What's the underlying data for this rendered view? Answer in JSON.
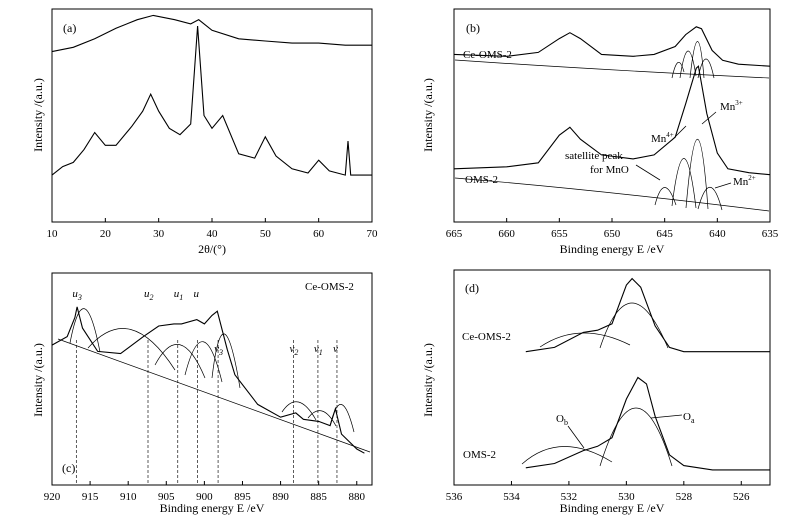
{
  "chart_data": [
    {
      "panel": "(a)",
      "type": "line",
      "xlabel": "2θ/(°)",
      "ylabel": "Intensity /(a.u.)",
      "xlim": [
        10,
        70
      ],
      "xticks": [
        10,
        20,
        30,
        40,
        50,
        60,
        70
      ],
      "series": [
        {
          "name": "",
          "x": [
            10,
            14,
            18,
            22,
            26,
            29,
            33,
            36,
            37.5,
            40,
            45,
            50,
            55,
            60,
            65,
            70
          ],
          "y": [
            0.8,
            0.82,
            0.86,
            0.91,
            0.95,
            0.97,
            0.95,
            0.93,
            0.95,
            0.9,
            0.86,
            0.85,
            0.84,
            0.84,
            0.83,
            0.83
          ]
        },
        {
          "name": "",
          "x": [
            10,
            12,
            14,
            16,
            18,
            20,
            22,
            25,
            27,
            28.5,
            30,
            32,
            34,
            36,
            37.3,
            38.5,
            40,
            42,
            45,
            48,
            50,
            52,
            55,
            58,
            60,
            62,
            65,
            65.5,
            66,
            70
          ],
          "y": [
            0.22,
            0.26,
            0.28,
            0.34,
            0.42,
            0.36,
            0.36,
            0.45,
            0.52,
            0.6,
            0.52,
            0.44,
            0.41,
            0.46,
            0.92,
            0.5,
            0.44,
            0.5,
            0.32,
            0.3,
            0.4,
            0.31,
            0.25,
            0.23,
            0.29,
            0.24,
            0.22,
            0.38,
            0.22,
            0.22
          ]
        }
      ]
    },
    {
      "panel": "(b)",
      "type": "line",
      "xlabel": "Binding energy E /eV",
      "ylabel": "Intensity /(a.u.)",
      "xlim": [
        665,
        635
      ],
      "xticks": [
        665,
        660,
        655,
        650,
        645,
        640,
        635
      ],
      "series": [
        {
          "name": "Ce-OMS-2",
          "x": [
            665,
            660,
            657,
            655,
            654,
            653,
            651,
            648,
            646,
            644,
            643,
            642,
            641.5,
            640.5,
            639.5,
            638,
            635
          ],
          "y": [
            0.85,
            0.84,
            0.86,
            0.93,
            0.96,
            0.93,
            0.85,
            0.84,
            0.85,
            0.89,
            0.95,
            0.99,
            0.98,
            0.87,
            0.82,
            0.8,
            0.79
          ]
        },
        {
          "name": "OMS-2",
          "x": [
            665,
            660,
            657,
            655,
            654,
            653,
            651,
            648,
            646,
            644,
            643,
            642,
            641.8,
            641,
            640,
            639,
            637,
            635
          ],
          "y": [
            0.27,
            0.28,
            0.3,
            0.44,
            0.48,
            0.42,
            0.34,
            0.32,
            0.34,
            0.43,
            0.6,
            0.78,
            0.79,
            0.55,
            0.35,
            0.27,
            0.25,
            0.24
          ]
        }
      ],
      "annotations": [
        {
          "text": "Ce-OMS-2"
        },
        {
          "text": "OMS-2"
        },
        {
          "text": "Mn",
          "sup": "4+"
        },
        {
          "text": "Mn",
          "sup": "3+"
        },
        {
          "text": "Mn",
          "sup": "2+"
        },
        {
          "text": "satellite peak"
        },
        {
          "text": "for MnO"
        }
      ]
    },
    {
      "panel": "(c)",
      "type": "line",
      "xlabel": "Binding energy E /eV",
      "ylabel": "Intensity /(a.u.)",
      "xlim": [
        920,
        878
      ],
      "xticks": [
        920,
        915,
        910,
        905,
        900,
        895,
        890,
        885,
        880
      ],
      "series": [
        {
          "name": "Ce-OMS-2",
          "x": [
            920,
            918,
            917,
            916.7,
            916,
            914,
            911,
            908,
            906,
            904,
            903,
            901,
            900,
            899,
            898.3,
            897,
            896,
            893,
            890,
            888,
            887,
            885,
            883.5,
            882.8,
            882,
            880,
            879
          ],
          "y": [
            0.66,
            0.7,
            0.79,
            0.84,
            0.74,
            0.63,
            0.62,
            0.7,
            0.75,
            0.76,
            0.76,
            0.78,
            0.76,
            0.8,
            0.82,
            0.64,
            0.52,
            0.38,
            0.32,
            0.34,
            0.31,
            0.3,
            0.28,
            0.36,
            0.24,
            0.17,
            0.15
          ]
        }
      ],
      "annotations": [
        {
          "text": "Ce-OMS-2"
        },
        {
          "text": "u",
          "sub": "3",
          "x": 916.8
        },
        {
          "text": "u",
          "sub": "2",
          "x": 907.4
        },
        {
          "text": "u",
          "sub": "1",
          "x": 903.5
        },
        {
          "text": "u",
          "sub": "",
          "x": 900.9
        },
        {
          "text": "v",
          "sub": "3",
          "x": 898.2
        },
        {
          "text": "v",
          "sub": "2",
          "x": 888.3
        },
        {
          "text": "v",
          "sub": "1",
          "x": 885.1
        },
        {
          "text": "v",
          "sub": "",
          "x": 882.6
        }
      ]
    },
    {
      "panel": "(d)",
      "type": "line",
      "xlabel": "Binding energy E /eV",
      "ylabel": "Intensity /(a.u.)",
      "xlim": [
        536,
        525
      ],
      "xticks": [
        536,
        534,
        532,
        530,
        528,
        526
      ],
      "series": [
        {
          "name": "Ce-OMS-2",
          "x": [
            533.5,
            532.5,
            531.5,
            531,
            530.5,
            530,
            529.8,
            529.5,
            529,
            528.5,
            528,
            527,
            525
          ],
          "y": [
            0.62,
            0.64,
            0.71,
            0.72,
            0.75,
            0.93,
            0.96,
            0.92,
            0.74,
            0.64,
            0.62,
            0.62,
            0.62
          ]
        },
        {
          "name": "OMS-2",
          "x": [
            533.5,
            532.5,
            531.5,
            531,
            530.5,
            530,
            529.6,
            529.3,
            529,
            528.5,
            528,
            527,
            525
          ],
          "y": [
            0.08,
            0.1,
            0.16,
            0.18,
            0.22,
            0.4,
            0.5,
            0.47,
            0.32,
            0.14,
            0.09,
            0.07,
            0.07
          ]
        }
      ],
      "annotations": [
        {
          "text": "Ce-OMS-2"
        },
        {
          "text": "OMS-2"
        },
        {
          "text": "O",
          "sub": "a"
        },
        {
          "text": "O",
          "sub": "b"
        }
      ]
    }
  ]
}
